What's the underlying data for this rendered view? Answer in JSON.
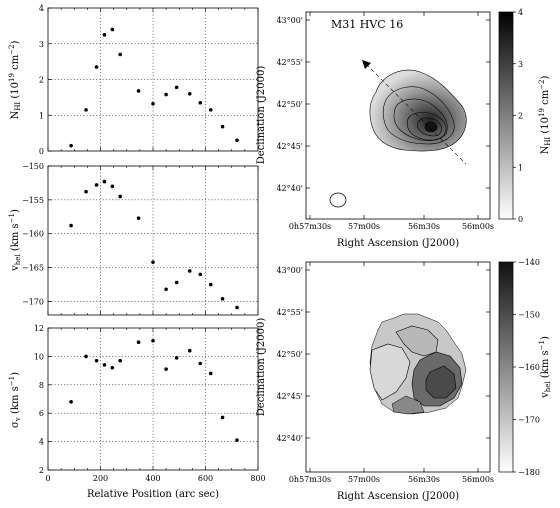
{
  "chart_data": [
    {
      "type": "scatter",
      "panel": "profile-nhi",
      "ylabel": "N_HI (10^19 cm^-2)",
      "xlim": [
        0,
        800
      ],
      "ylim": [
        0,
        4
      ],
      "yticks": [
        0,
        1,
        2,
        3,
        4
      ],
      "grid": true,
      "points": [
        [
          88,
          0.15
        ],
        [
          145,
          1.15
        ],
        [
          185,
          2.35
        ],
        [
          215,
          3.25
        ],
        [
          245,
          3.4
        ],
        [
          275,
          2.7
        ],
        [
          345,
          1.68
        ],
        [
          400,
          1.32
        ],
        [
          450,
          1.58
        ],
        [
          490,
          1.78
        ],
        [
          540,
          1.6
        ],
        [
          580,
          1.35
        ],
        [
          620,
          1.15
        ],
        [
          665,
          0.68
        ],
        [
          720,
          0.3
        ]
      ]
    },
    {
      "type": "scatter",
      "panel": "profile-vhel",
      "ylabel": "v_hel (km s^-1)",
      "xlim": [
        0,
        800
      ],
      "ylim": [
        -172,
        -150
      ],
      "yticks": [
        -150,
        -155,
        -160,
        -165,
        -170
      ],
      "grid": true,
      "points": [
        [
          88,
          -158.8
        ],
        [
          145,
          -153.8
        ],
        [
          185,
          -152.8
        ],
        [
          215,
          -152.3
        ],
        [
          245,
          -153
        ],
        [
          275,
          -154.5
        ],
        [
          345,
          -157.7
        ],
        [
          400,
          -164.2
        ],
        [
          450,
          -168.2
        ],
        [
          490,
          -167.2
        ],
        [
          540,
          -165.5
        ],
        [
          580,
          -166
        ],
        [
          620,
          -167.5
        ],
        [
          665,
          -169.6
        ],
        [
          720,
          -170.9
        ]
      ]
    },
    {
      "type": "scatter",
      "panel": "profile-sigma",
      "ylabel": "σ_v (km s^-1)",
      "xlabel": "Relative Position (arc sec)",
      "xlim": [
        0,
        800
      ],
      "ylim": [
        2,
        12
      ],
      "yticks": [
        2,
        4,
        6,
        8,
        10,
        12
      ],
      "xticks": [
        0,
        200,
        400,
        600,
        800
      ],
      "grid": true,
      "points": [
        [
          88,
          6.8
        ],
        [
          145,
          10
        ],
        [
          185,
          9.7
        ],
        [
          215,
          9.4
        ],
        [
          245,
          9.2
        ],
        [
          275,
          9.7
        ],
        [
          345,
          11
        ],
        [
          400,
          11.1
        ],
        [
          450,
          9.1
        ],
        [
          490,
          9.9
        ],
        [
          540,
          10.4
        ],
        [
          580,
          9.5
        ],
        [
          620,
          8.8
        ],
        [
          665,
          5.7
        ],
        [
          720,
          4.1
        ]
      ]
    },
    {
      "type": "heatmap",
      "panel": "map-nhi",
      "title": "M31 HVC 16",
      "xlabel": "Right Ascension (J2000)",
      "ylabel": "Declination (J2000)",
      "xticks": [
        "0h57m30s",
        "57m00s",
        "56m30s",
        "56m00s"
      ],
      "yticks": [
        "43°00'",
        "42°55'",
        "42°50'",
        "42°45'",
        "42°40'"
      ],
      "colorbar": {
        "label": "N_HI (10^19 cm^-2)",
        "min": 0,
        "max": 4,
        "ticks": [
          "0",
          "1",
          "2",
          "3",
          "4"
        ]
      }
    },
    {
      "type": "heatmap",
      "panel": "map-vhel",
      "xlabel": "Right Ascension (J2000)",
      "ylabel": "Declination (J2000)",
      "xticks": [
        "0h57m30s",
        "57m00s",
        "56m30s",
        "56m00s"
      ],
      "yticks": [
        "43°00'",
        "42°55'",
        "42°50'",
        "42°45'",
        "42°40'"
      ],
      "colorbar": {
        "label": "v_hel (km s^-1)",
        "min": -180,
        "max": -140,
        "ticks": [
          "-140",
          "-150",
          "-160",
          "-170",
          "-180"
        ]
      }
    }
  ],
  "colors": {
    "marker": "#000000",
    "frame": "#000000"
  }
}
